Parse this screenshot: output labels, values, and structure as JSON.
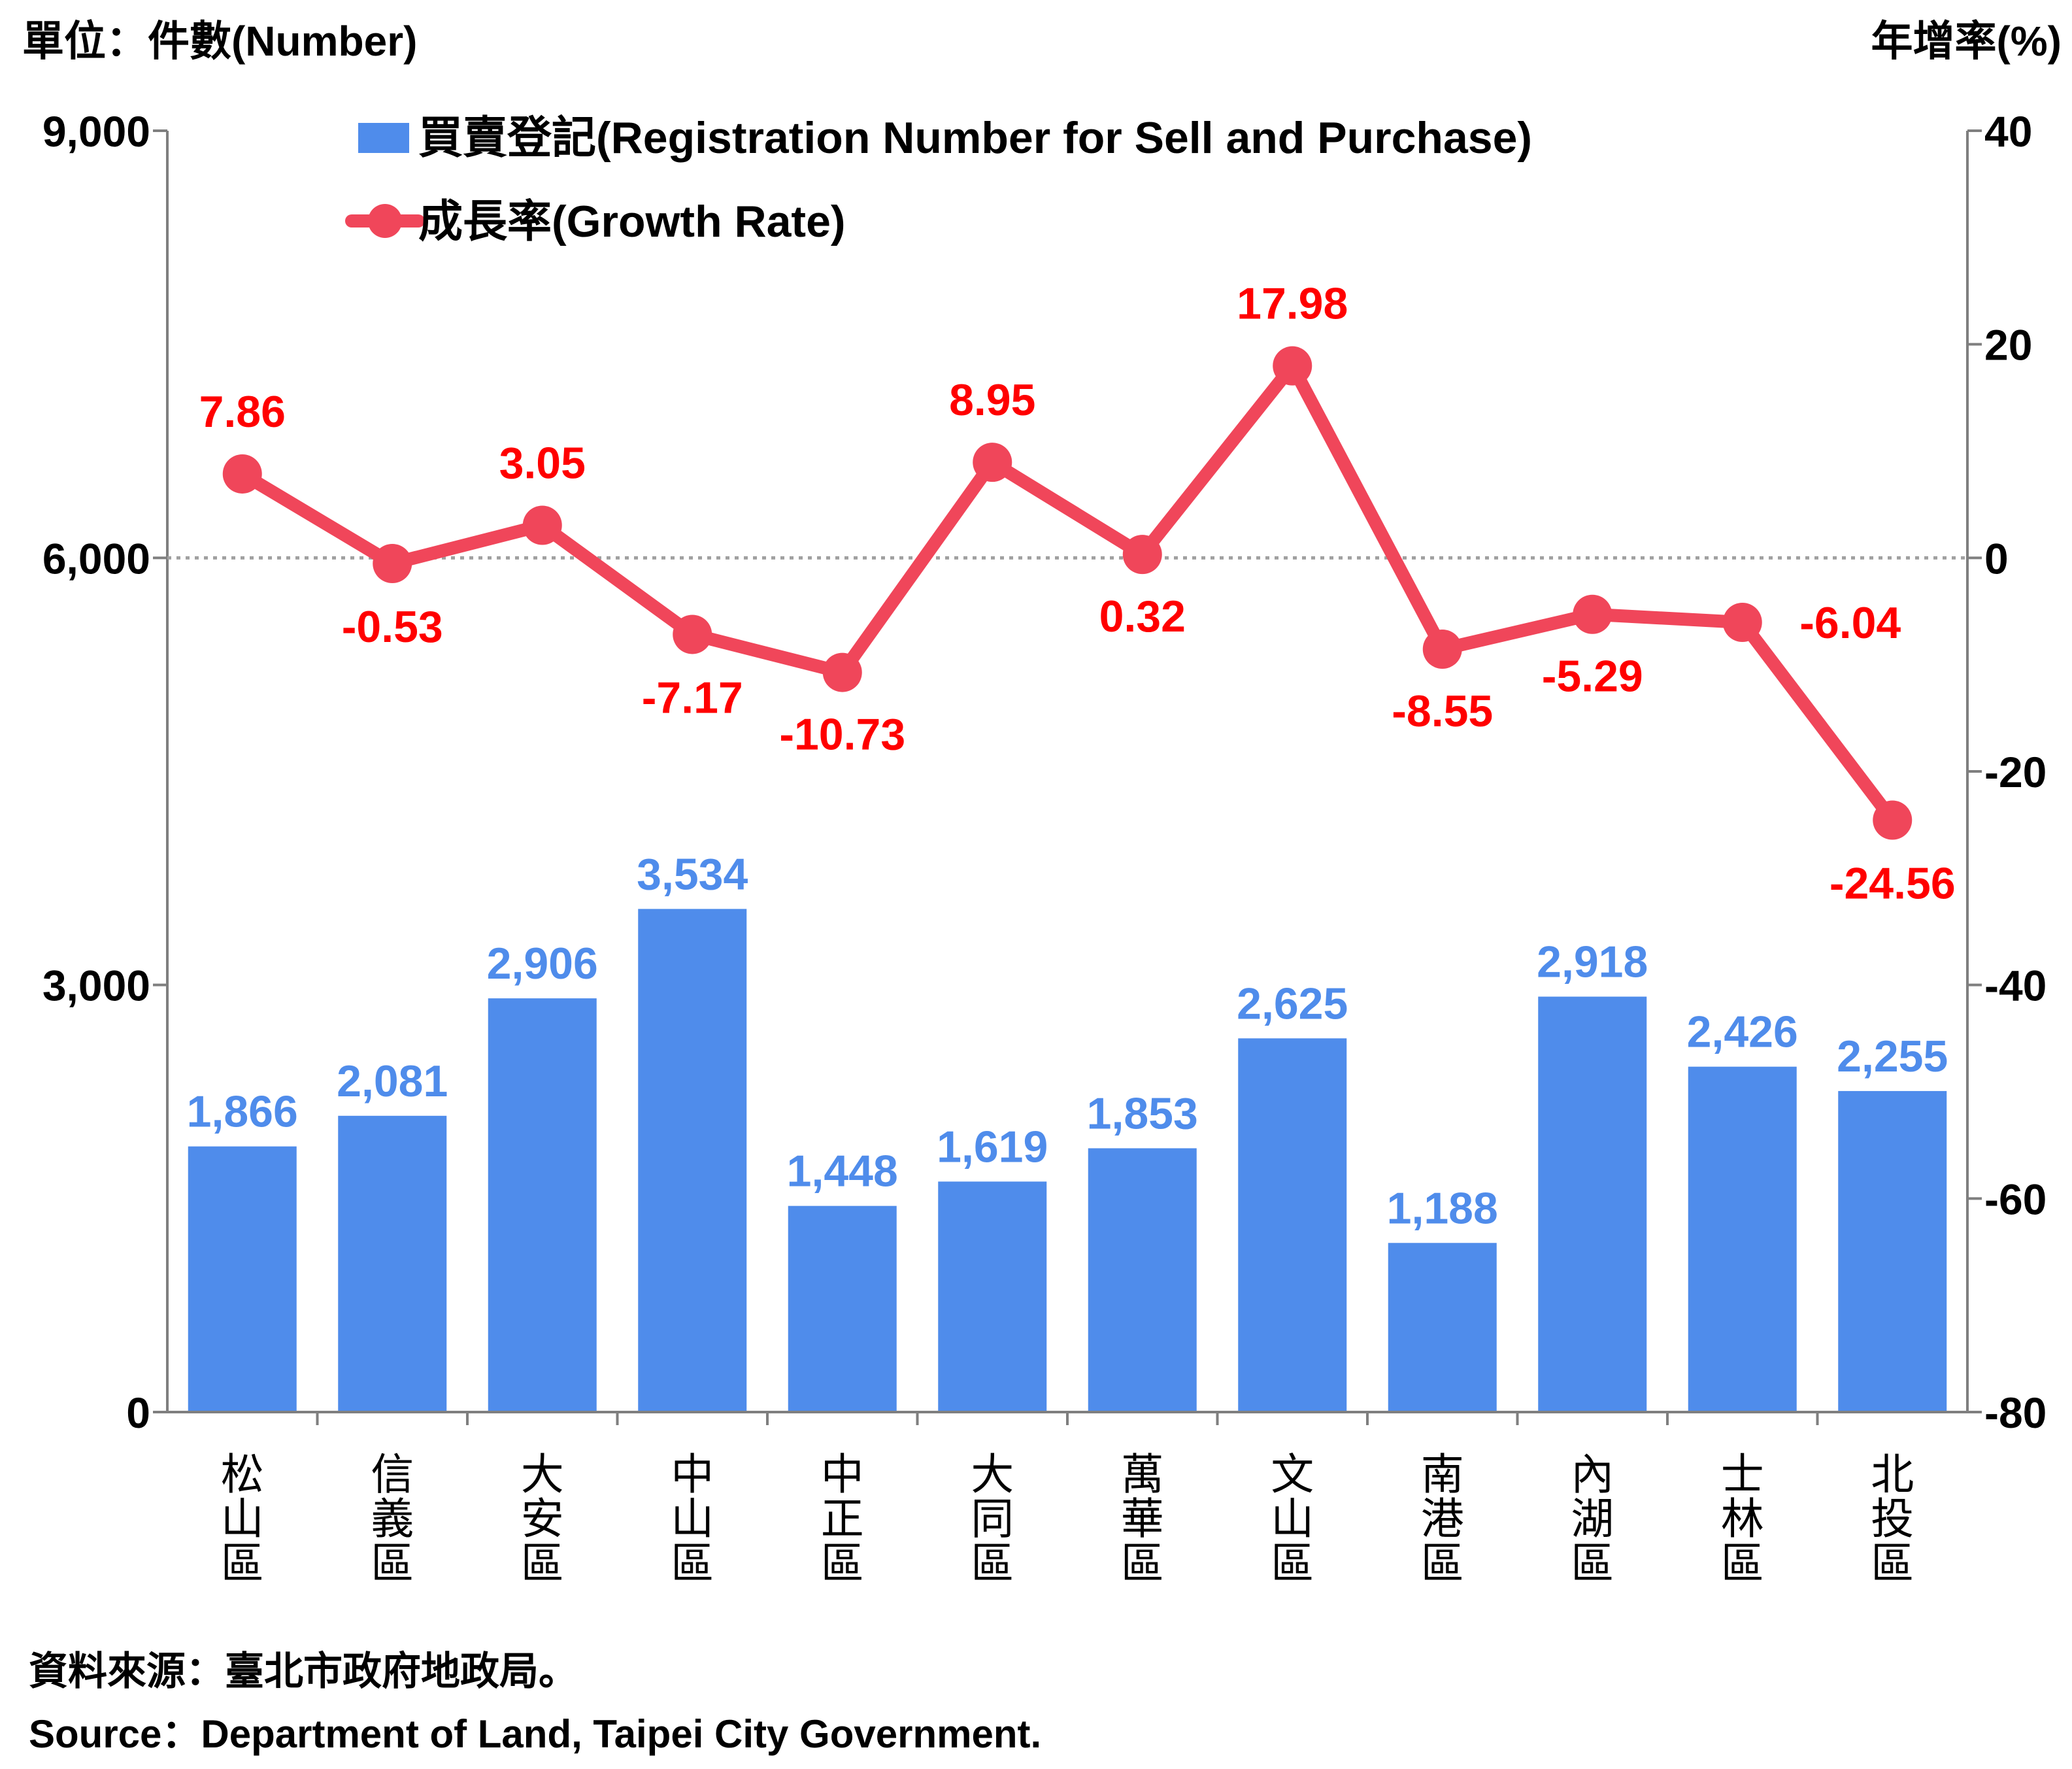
{
  "units": {
    "left": "單位：件數(Number)",
    "right": "年增率(%)"
  },
  "source": {
    "zh": "資料來源：臺北市政府地政局。",
    "en": "Source：Department of Land, Taipei City Government."
  },
  "colors": {
    "bar": "#4F8CEB",
    "bar_label": "#4F8CEB",
    "line": "#F0465A",
    "line_label": "#FF0000",
    "axis": "#7F7F7F"
  },
  "chart_data": {
    "type": "bar+line",
    "categories": [
      "松山區",
      "信義區",
      "大安區",
      "中山區",
      "中正區",
      "大同區",
      "萬華區",
      "文山區",
      "南港區",
      "內湖區",
      "士林區",
      "北投區"
    ],
    "series": [
      {
        "name": "買賣登記(Registration Number for Sell and Purchase)",
        "type": "bar",
        "axis": "left",
        "values": [
          1866,
          2081,
          2906,
          3534,
          1448,
          1619,
          1853,
          2625,
          1188,
          2918,
          2426,
          2255
        ],
        "labels": [
          "1,866",
          "2,081",
          "2,906",
          "3,534",
          "1,448",
          "1,619",
          "1,853",
          "2,625",
          "1,188",
          "2,918",
          "2,426",
          "2,255"
        ]
      },
      {
        "name": "成長率(Growth Rate)",
        "type": "line",
        "axis": "right",
        "values": [
          7.86,
          -0.53,
          3.05,
          -7.17,
          -10.73,
          8.95,
          0.32,
          17.98,
          -8.55,
          -5.29,
          -6.04,
          -24.56
        ],
        "labels": [
          "7.86",
          "-0.53",
          "3.05",
          "-7.17",
          "-10.73",
          "8.95",
          "0.32",
          "17.98",
          "-8.55",
          "-5.29",
          "-6.04",
          "-24.56"
        ]
      }
    ],
    "y_left": {
      "min": 0,
      "max": 9000,
      "ticks": [
        0,
        3000,
        6000,
        9000
      ],
      "tick_labels": [
        "0",
        "3,000",
        "6,000",
        "9,000"
      ]
    },
    "y_right": {
      "min": -80,
      "max": 40,
      "ticks": [
        -80,
        -60,
        -40,
        -20,
        0,
        20,
        40
      ],
      "tick_labels": [
        "-80",
        "-60",
        "-40",
        "-20",
        "0",
        "20",
        "40"
      ]
    },
    "legend_position": "top-center",
    "grid": false
  }
}
